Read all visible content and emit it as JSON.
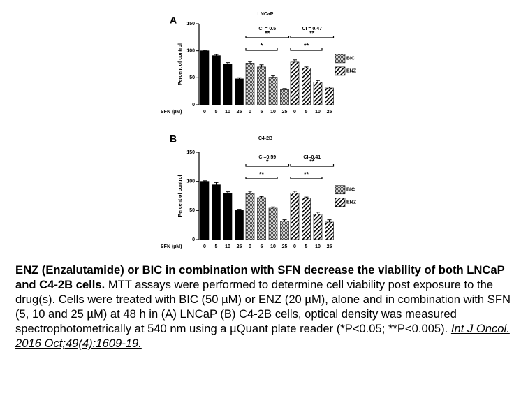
{
  "chart_data": [
    {
      "type": "bar",
      "panel": "A",
      "title": "LNCaP",
      "y_label": "Percent of control",
      "x_label": "SFN (µM)",
      "categories": [
        "0",
        "5",
        "10",
        "25"
      ],
      "ylim": [
        0,
        150
      ],
      "yticks": [
        0,
        50,
        100,
        150
      ],
      "legend": "right",
      "series": [
        {
          "color": "#000000",
          "pattern": "solid",
          "values": [
            100,
            91,
            75,
            48
          ],
          "errors": [
            1,
            2,
            3,
            2
          ]
        },
        {
          "name": "BIC",
          "color": "#8a8a8a",
          "pattern": "dots",
          "values": [
            77,
            70,
            51,
            28
          ],
          "errors": [
            3,
            4,
            3,
            2
          ]
        },
        {
          "name": "ENZ",
          "color": "#000000",
          "pattern": "hatch",
          "values": [
            79,
            68,
            42,
            31
          ],
          "errors": [
            4,
            2,
            3,
            2
          ]
        }
      ],
      "annotations": [
        {
          "series": 1,
          "label": "CI = 0.5"
        },
        {
          "series": 2,
          "label": "CI = 0.47"
        }
      ],
      "brackets": [
        {
          "series": 1,
          "span": [
            0,
            3
          ],
          "label": "**"
        },
        {
          "series": 1,
          "span": [
            0,
            2
          ],
          "label": "*"
        },
        {
          "series": 2,
          "span": [
            0,
            3
          ],
          "label": "**"
        },
        {
          "series": 2,
          "span": [
            0,
            2
          ],
          "label": "**"
        }
      ]
    },
    {
      "type": "bar",
      "panel": "B",
      "title": "C4-2B",
      "y_label": "Percent of control",
      "x_label": "SFN (µM)",
      "categories": [
        "0",
        "5",
        "10",
        "25"
      ],
      "ylim": [
        0,
        150
      ],
      "yticks": [
        0,
        50,
        100,
        150
      ],
      "legend": "right",
      "series": [
        {
          "color": "#000000",
          "pattern": "solid",
          "values": [
            100,
            94,
            79,
            50
          ],
          "errors": [
            1,
            4,
            3,
            2
          ]
        },
        {
          "name": "BIC",
          "color": "#8a8a8a",
          "pattern": "dots",
          "values": [
            79,
            72,
            54,
            32
          ],
          "errors": [
            4,
            2,
            2,
            2
          ]
        },
        {
          "name": "ENZ",
          "color": "#000000",
          "pattern": "hatch",
          "values": [
            80,
            71,
            44,
            30
          ],
          "errors": [
            3,
            2,
            3,
            4
          ]
        }
      ],
      "annotations": [
        {
          "series": 1,
          "label": "CI=0.59"
        },
        {
          "series": 2,
          "label": "CI=0.41"
        }
      ],
      "brackets": [
        {
          "series": 1,
          "span": [
            0,
            3
          ],
          "label": "*"
        },
        {
          "series": 1,
          "span": [
            0,
            2
          ],
          "label": "**"
        },
        {
          "series": 2,
          "span": [
            0,
            3
          ],
          "label": "**"
        },
        {
          "series": 2,
          "span": [
            0,
            2
          ],
          "label": "**"
        }
      ]
    }
  ],
  "caption": {
    "bold": "ENZ (Enzalutamide) or BIC in combination with SFN decrease the viability of both LNCaP and C4-2B cells.",
    "text": " MTT assays were performed to determine cell viability post exposure to the drug(s). Cells were treated with BIC (50 µM) or ENZ (20 µM), alone and in combination with SFN (5, 10 and 25 µM) at 48 h in (A) LNCaP (B) C4-2B cells, optical density was measured spectrophotometrically at 540 nm using a µQuant plate reader (*P<0.05; **P<0.005). ",
    "citation": "Int J Oncol. 2016 Oct;49(4):1609-19."
  }
}
